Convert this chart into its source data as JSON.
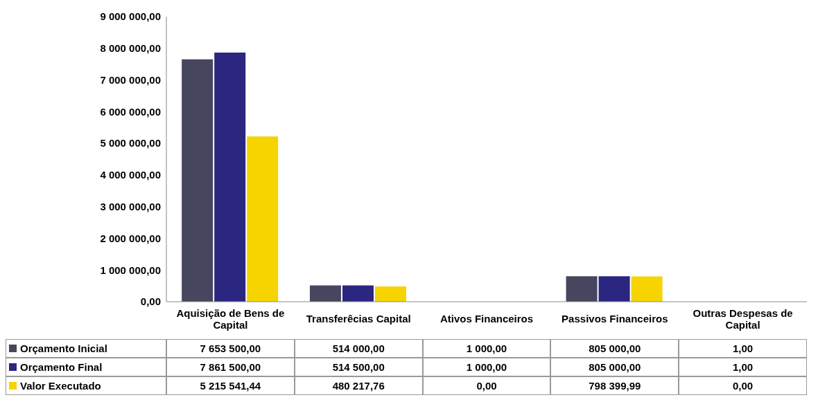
{
  "chart_data": {
    "type": "bar",
    "categories": [
      "Aquisição de Bens de Capital",
      "Transferêcias Capital",
      "Ativos Financeiros",
      "Passivos Financeiros",
      "Outras Despesas de Capital"
    ],
    "series": [
      {
        "name": "Orçamento Inicial",
        "color": "#46465f",
        "values": [
          7653500,
          514000,
          1000,
          805000,
          1
        ],
        "value_labels": [
          "7 653 500,00",
          "514 000,00",
          "1 000,00",
          "805 000,00",
          "1,00"
        ]
      },
      {
        "name": "Orçamento Final",
        "color": "#2b2680",
        "values": [
          7861500,
          514500,
          1000,
          805000,
          1
        ],
        "value_labels": [
          "7 861 500,00",
          "514 500,00",
          "1 000,00",
          "805 000,00",
          "1,00"
        ]
      },
      {
        "name": "Valor Executado",
        "color": "#f5d400",
        "values": [
          5215541.44,
          480217.76,
          0,
          798399.99,
          0
        ],
        "value_labels": [
          "5 215 541,44",
          "480 217,76",
          "0,00",
          "798 399,99",
          "0,00"
        ]
      }
    ],
    "ylim": [
      0,
      9000000
    ],
    "yticks": [
      {
        "value": 0,
        "label": "0,00"
      },
      {
        "value": 1000000,
        "label": "1 000 000,00"
      },
      {
        "value": 2000000,
        "label": "2 000 000,00"
      },
      {
        "value": 3000000,
        "label": "3 000 000,00"
      },
      {
        "value": 4000000,
        "label": "4 000 000,00"
      },
      {
        "value": 5000000,
        "label": "5 000 000,00"
      },
      {
        "value": 6000000,
        "label": "6 000 000,00"
      },
      {
        "value": 7000000,
        "label": "7 000 000,00"
      },
      {
        "value": 8000000,
        "label": "8 000 000,00"
      },
      {
        "value": 9000000,
        "label": "9 000 000,00"
      }
    ],
    "legend": "bottom left"
  }
}
